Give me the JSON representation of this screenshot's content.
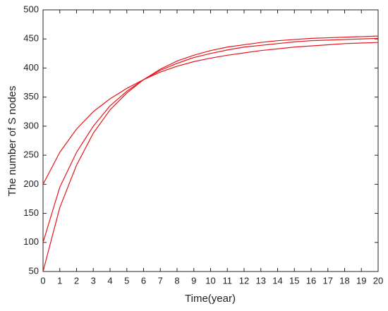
{
  "chart_data": {
    "type": "line",
    "x_label": "Time(year)",
    "y_label": "The number of S nodes",
    "x": [
      0,
      1,
      2,
      3,
      4,
      5,
      6,
      7,
      8,
      9,
      10,
      11,
      12,
      13,
      14,
      15,
      16,
      17,
      18,
      19,
      20
    ],
    "series": [
      {
        "color": "#e8141b",
        "values": [
          200,
          255,
          295,
          325,
          347,
          365,
          380,
          393,
          403,
          411,
          417,
          422,
          426,
          430,
          433,
          436,
          438,
          440,
          442,
          443,
          444
        ]
      },
      {
        "color": "#e8141b",
        "values": [
          100,
          195,
          255,
          300,
          335,
          360,
          380,
          396,
          408,
          418,
          425,
          431,
          436,
          439,
          442,
          445,
          447,
          448,
          449,
          450,
          451
        ]
      },
      {
        "color": "#e8141b",
        "values": [
          50,
          160,
          233,
          288,
          328,
          357,
          380,
          398,
          412,
          422,
          430,
          436,
          440,
          444,
          447,
          449,
          451,
          452,
          453,
          454,
          455
        ]
      }
    ],
    "xlim": [
      0,
      20
    ],
    "ylim": [
      50,
      500
    ],
    "xticks": [
      0,
      1,
      2,
      3,
      4,
      5,
      6,
      7,
      8,
      9,
      10,
      11,
      12,
      13,
      14,
      15,
      16,
      17,
      18,
      19,
      20
    ],
    "yticks": [
      50,
      100,
      150,
      200,
      250,
      300,
      350,
      400,
      450,
      500
    ],
    "grid": false
  }
}
